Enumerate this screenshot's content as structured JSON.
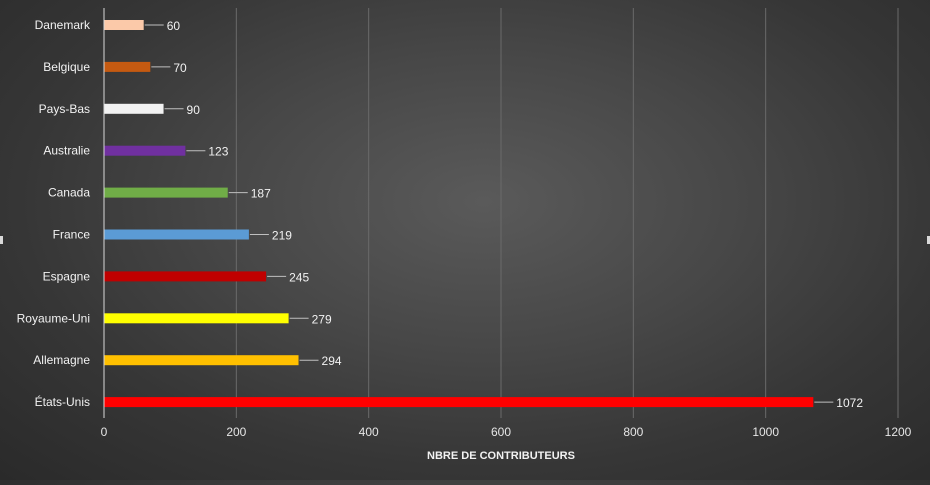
{
  "chart_data": {
    "type": "bar",
    "orientation": "horizontal",
    "categories": [
      "Danemark",
      "Belgique",
      "Pays-Bas",
      "Australie",
      "Canada",
      "France",
      "Espagne",
      "Royaume-Uni",
      "Allemagne",
      "États-Unis"
    ],
    "values": [
      60,
      70,
      90,
      123,
      187,
      219,
      245,
      279,
      294,
      1072
    ],
    "colors": [
      "#fbc9a9",
      "#c55a11",
      "#f2f2f2",
      "#7030a0",
      "#70ad47",
      "#5b9bd5",
      "#c00000",
      "#ffff00",
      "#ffc000",
      "#ff0000"
    ],
    "title": "",
    "xlabel": "NBRE DE CONTRIBUTEURS",
    "ylabel": "",
    "xlim": [
      0,
      1200
    ],
    "xticks": [
      0,
      200,
      400,
      600,
      800,
      1000,
      1200
    ],
    "grid": "vertical",
    "legend": "none"
  }
}
